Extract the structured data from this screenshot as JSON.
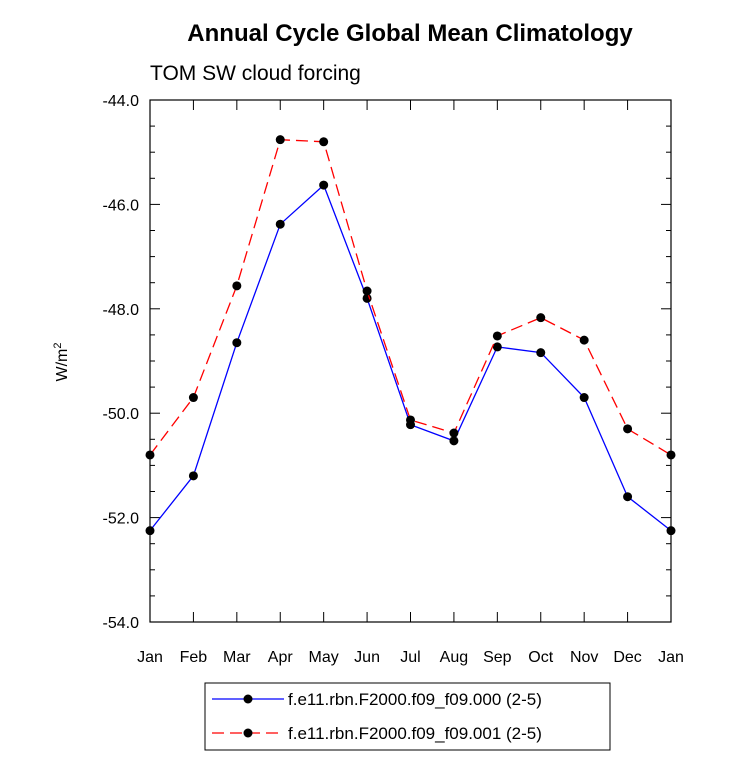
{
  "chart_data": {
    "type": "line",
    "title": "Annual Cycle Global Mean Climatology",
    "subtitle": "TOM SW cloud forcing",
    "xlabel": "",
    "ylabel": "W/m",
    "ylabel_superscript": "2",
    "categories": [
      "Jan",
      "Feb",
      "Mar",
      "Apr",
      "May",
      "Jun",
      "Jul",
      "Aug",
      "Sep",
      "Oct",
      "Nov",
      "Dec",
      "Jan"
    ],
    "ylim": [
      -54.0,
      -44.0
    ],
    "yticks": [
      -54.0,
      -52.0,
      -50.0,
      -48.0,
      -46.0,
      -44.0
    ],
    "ytick_labels": [
      "-54.0",
      "-52.0",
      "-50.0",
      "-48.0",
      "-46.0",
      "-44.0"
    ],
    "grid": false,
    "legend_position": "bottom-center",
    "series": [
      {
        "name": "f.e11.rbn.F2000.f09_f09.000 (2-5)",
        "color": "#0000ff",
        "dash": "solid",
        "values": [
          -52.25,
          -51.2,
          -48.65,
          -46.38,
          -45.63,
          -47.8,
          -50.22,
          -50.53,
          -48.73,
          -48.84,
          -49.7,
          -51.6,
          -52.25
        ]
      },
      {
        "name": "f.e11.rbn.F2000.f09_f09.001 (2-5)",
        "color": "#ff0000",
        "dash": "dashed",
        "values": [
          -50.8,
          -49.7,
          -47.56,
          -44.76,
          -44.8,
          -47.66,
          -50.13,
          -50.38,
          -48.52,
          -48.17,
          -48.6,
          -50.3,
          -50.8
        ]
      }
    ]
  }
}
